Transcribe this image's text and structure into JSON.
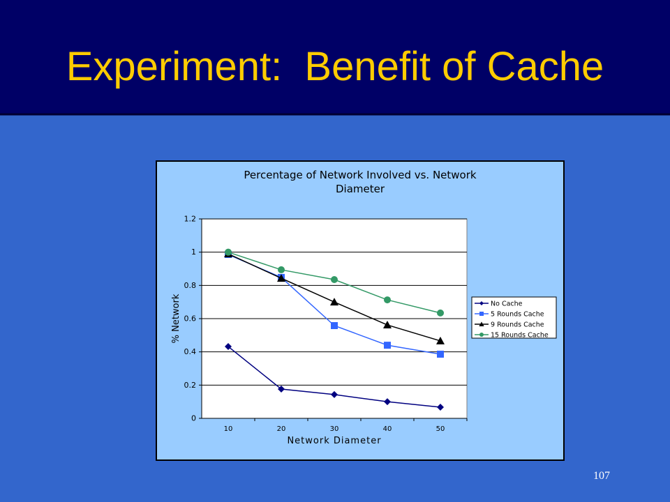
{
  "slide_title": "Experiment:  Benefit of Cache",
  "page_number": "107",
  "chart_data": {
    "type": "line",
    "title": "Percentage of Network Involved vs. Network Diameter",
    "x_label": "Network Diameter",
    "y_label": "% Network",
    "categories": [
      "10",
      "20",
      "30",
      "40",
      "50"
    ],
    "ylim": [
      0,
      1.2
    ],
    "yticks": [
      0,
      0.2,
      0.4,
      0.6,
      0.8,
      1,
      1.2
    ],
    "grid": true,
    "legend": "right",
    "series": [
      {
        "name": "No Cache",
        "color": "#000080",
        "marker": "diamond",
        "values": [
          0.432,
          0.176,
          0.143,
          0.1,
          0.067
        ]
      },
      {
        "name": "5 Rounds Cache",
        "color": "#3366ff",
        "marker": "square",
        "values": [
          0.986,
          0.848,
          0.558,
          0.44,
          0.386
        ]
      },
      {
        "name": "9 Rounds Cache",
        "color": "#000000",
        "marker": "triangle",
        "values": [
          0.99,
          0.843,
          0.7,
          0.562,
          0.466
        ]
      },
      {
        "name": "15 Rounds Cache",
        "color": "#339966",
        "marker": "circle",
        "values": [
          1.0,
          0.894,
          0.835,
          0.713,
          0.634
        ]
      }
    ]
  }
}
